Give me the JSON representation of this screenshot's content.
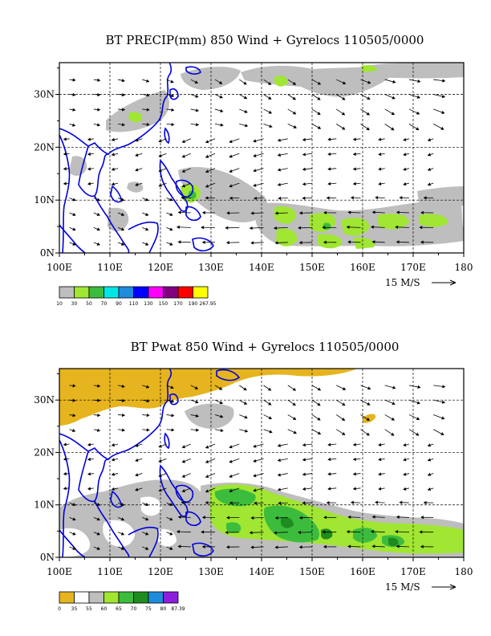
{
  "chart_data": [
    {
      "type": "heatmap",
      "title": "BT PRECIP(mm) 850 Wind + Gyrelocs 110505/0000",
      "xlim": [
        100,
        180
      ],
      "ylim": [
        0,
        36
      ],
      "x_ticks": [
        "100E",
        "110E",
        "120E",
        "130E",
        "140E",
        "150E",
        "160E",
        "170E",
        "180"
      ],
      "y_ticks": [
        "0N",
        "10N",
        "20N",
        "30N"
      ],
      "y_tick_values": [
        0,
        10,
        20,
        30
      ],
      "grid": true,
      "vector_scale": "15 M/S",
      "colorbar": {
        "labels": [
          "10",
          "30",
          "50",
          "70",
          "90",
          "110",
          "130",
          "150",
          "170",
          "190",
          "267.95"
        ],
        "colors": [
          "#bebebe",
          "#a0e632",
          "#3cbc3c",
          "#00e6e6",
          "#1e8cdc",
          "#0000ff",
          "#ff00ff",
          "#800080",
          "#ff0000",
          "#ffff00"
        ]
      }
    },
    {
      "type": "heatmap",
      "title": "BT Pwat 850 Wind + Gyrelocs 110505/0000",
      "xlim": [
        100,
        180
      ],
      "ylim": [
        0,
        36
      ],
      "x_ticks": [
        "100E",
        "110E",
        "120E",
        "130E",
        "140E",
        "150E",
        "160E",
        "170E",
        "180"
      ],
      "y_ticks": [
        "0N",
        "10N",
        "20N",
        "30N"
      ],
      "y_tick_values": [
        0,
        10,
        20,
        30
      ],
      "grid": true,
      "vector_scale": "15 M/S",
      "colorbar": {
        "labels": [
          "0",
          "35",
          "55",
          "60",
          "65",
          "70",
          "75",
          "80",
          "87.39"
        ],
        "colors": [
          "#e6b41e",
          "#ffffff",
          "#bebebe",
          "#a0e632",
          "#3cbc3c",
          "#1e8c1e",
          "#1e8cdc",
          "#8c1edc"
        ]
      }
    }
  ]
}
